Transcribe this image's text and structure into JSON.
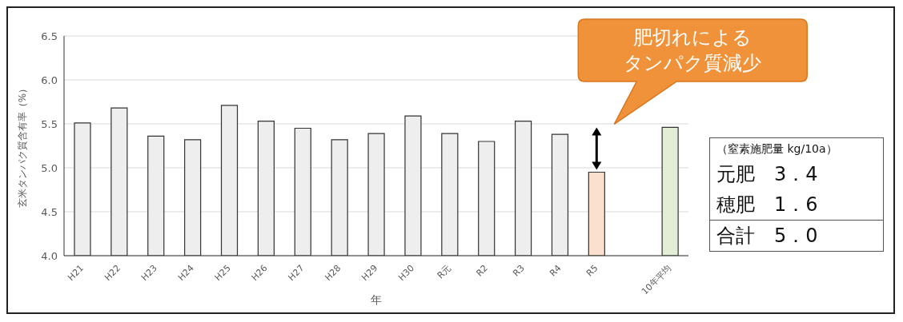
{
  "chart_data": {
    "type": "bar",
    "ylabel": "玄米タンパク質含有率（%）",
    "xlabel": "年",
    "categories": [
      "H21",
      "H22",
      "H23",
      "H24",
      "H25",
      "H26",
      "H27",
      "H28",
      "H29",
      "H30",
      "R元",
      "R2",
      "R3",
      "R4",
      "R5",
      null,
      "10年平均"
    ],
    "values": [
      5.51,
      5.68,
      5.36,
      5.32,
      5.71,
      5.53,
      5.45,
      5.32,
      5.39,
      5.59,
      5.39,
      5.3,
      5.53,
      5.38,
      4.95,
      null,
      5.46
    ],
    "colors": [
      "#eeeeee",
      "#eeeeee",
      "#eeeeee",
      "#eeeeee",
      "#eeeeee",
      "#eeeeee",
      "#eeeeee",
      "#eeeeee",
      "#eeeeee",
      "#eeeeee",
      "#eeeeee",
      "#eeeeee",
      "#eeeeee",
      "#eeeeee",
      "#fce0cf",
      "#eeeeee",
      "#e3eed6"
    ],
    "ylim": [
      4,
      6.5
    ],
    "yticks": [
      {
        "value": 4,
        "label": "4.0"
      },
      {
        "value": 4.5,
        "label": "4.5"
      },
      {
        "value": 5,
        "label": "5.0"
      },
      {
        "value": 5.5,
        "label": "5.5"
      },
      {
        "value": 6,
        "label": "6.0"
      },
      {
        "value": 6.5,
        "label": "6.5"
      }
    ],
    "grid": "y",
    "legend": false,
    "annotations": [
      "肥切れによる",
      "タンパク質減少",
      "（窒素施肥量 kg/10a）",
      "元肥　3．4",
      "穂肥　1．6",
      "合計　5．0"
    ]
  }
}
